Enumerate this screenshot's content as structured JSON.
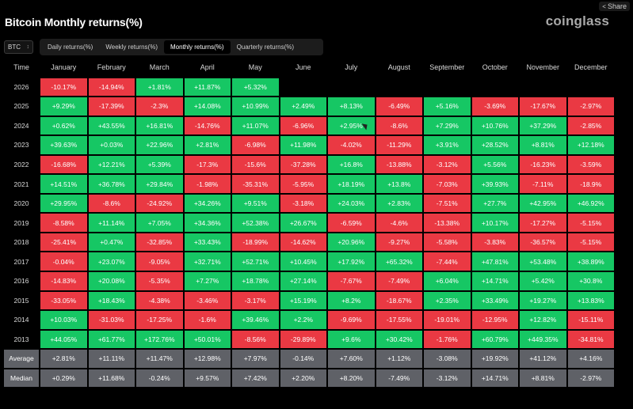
{
  "header": {
    "title": "Bitcoin Monthly returns(%)",
    "logo": "coinglass",
    "share_label": "Share",
    "coin_select": "BTC"
  },
  "tabs": [
    {
      "label": "Daily returns(%)",
      "active": false
    },
    {
      "label": "Weekly returns(%)",
      "active": false
    },
    {
      "label": "Monthly returns(%)",
      "active": true
    },
    {
      "label": "Quarterly returns(%)",
      "active": false
    }
  ],
  "colors": {
    "positive": "#16c764",
    "negative": "#ea3943",
    "summary": "#5f6167"
  },
  "chart_data": {
    "type": "heatmap",
    "title": "Bitcoin Monthly returns(%)",
    "corner_label": "Time",
    "columns": [
      "January",
      "February",
      "March",
      "April",
      "May",
      "June",
      "July",
      "August",
      "September",
      "October",
      "November",
      "December"
    ],
    "rows": [
      {
        "year": "2026",
        "values": [
          "-10.17%",
          "-14.94%",
          "+1.81%",
          "+11.87%",
          "+5.32%",
          "",
          "",
          "",
          "",
          "",
          "",
          ""
        ]
      },
      {
        "year": "2025",
        "values": [
          "+9.29%",
          "-17.39%",
          "-2.3%",
          "+14.08%",
          "+10.99%",
          "+2.49%",
          "+8.13%",
          "-6.49%",
          "+5.16%",
          "-3.69%",
          "-17.67%",
          "-2.97%"
        ]
      },
      {
        "year": "2024",
        "values": [
          "+0.62%",
          "+43.55%",
          "+16.81%",
          "-14.76%",
          "+11.07%",
          "-6.96%",
          "+2.95%",
          "-8.6%",
          "+7.29%",
          "+10.76%",
          "+37.29%",
          "-2.85%"
        ]
      },
      {
        "year": "2023",
        "values": [
          "+39.63%",
          "+0.03%",
          "+22.96%",
          "+2.81%",
          "-6.98%",
          "+11.98%",
          "-4.02%",
          "-11.29%",
          "+3.91%",
          "+28.52%",
          "+8.81%",
          "+12.18%"
        ]
      },
      {
        "year": "2022",
        "values": [
          "-16.68%",
          "+12.21%",
          "+5.39%",
          "-17.3%",
          "-15.6%",
          "-37.28%",
          "+16.8%",
          "-13.88%",
          "-3.12%",
          "+5.56%",
          "-16.23%",
          "-3.59%"
        ]
      },
      {
        "year": "2021",
        "values": [
          "+14.51%",
          "+36.78%",
          "+29.84%",
          "-1.98%",
          "-35.31%",
          "-5.95%",
          "+18.19%",
          "+13.8%",
          "-7.03%",
          "+39.93%",
          "-7.11%",
          "-18.9%"
        ]
      },
      {
        "year": "2020",
        "values": [
          "+29.95%",
          "-8.6%",
          "-24.92%",
          "+34.26%",
          "+9.51%",
          "-3.18%",
          "+24.03%",
          "+2.83%",
          "-7.51%",
          "+27.7%",
          "+42.95%",
          "+46.92%"
        ]
      },
      {
        "year": "2019",
        "values": [
          "-8.58%",
          "+11.14%",
          "+7.05%",
          "+34.36%",
          "+52.38%",
          "+26.67%",
          "-6.59%",
          "-4.6%",
          "-13.38%",
          "+10.17%",
          "-17.27%",
          "-5.15%"
        ]
      },
      {
        "year": "2018",
        "values": [
          "-25.41%",
          "+0.47%",
          "-32.85%",
          "+33.43%",
          "-18.99%",
          "-14.62%",
          "+20.96%",
          "-9.27%",
          "-5.58%",
          "-3.83%",
          "-36.57%",
          "-5.15%"
        ]
      },
      {
        "year": "2017",
        "values": [
          "-0.04%",
          "+23.07%",
          "-9.05%",
          "+32.71%",
          "+52.71%",
          "+10.45%",
          "+17.92%",
          "+65.32%",
          "-7.44%",
          "+47.81%",
          "+53.48%",
          "+38.89%"
        ]
      },
      {
        "year": "2016",
        "values": [
          "-14.83%",
          "+20.08%",
          "-5.35%",
          "+7.27%",
          "+18.78%",
          "+27.14%",
          "-7.67%",
          "-7.49%",
          "+6.04%",
          "+14.71%",
          "+5.42%",
          "+30.8%"
        ]
      },
      {
        "year": "2015",
        "values": [
          "-33.05%",
          "+18.43%",
          "-4.38%",
          "-3.46%",
          "-3.17%",
          "+15.19%",
          "+8.2%",
          "-18.67%",
          "+2.35%",
          "+33.49%",
          "+19.27%",
          "+13.83%"
        ]
      },
      {
        "year": "2014",
        "values": [
          "+10.03%",
          "-31.03%",
          "-17.25%",
          "-1.6%",
          "+39.46%",
          "+2.2%",
          "-9.69%",
          "-17.55%",
          "-19.01%",
          "-12.95%",
          "+12.82%",
          "-15.11%"
        ]
      },
      {
        "year": "2013",
        "values": [
          "+44.05%",
          "+61.77%",
          "+172.76%",
          "+50.01%",
          "-8.56%",
          "-29.89%",
          "+9.6%",
          "+30.42%",
          "-1.76%",
          "+60.79%",
          "+449.35%",
          "-34.81%"
        ]
      }
    ],
    "summary": [
      {
        "label": "Average",
        "values": [
          "+2.81%",
          "+11.11%",
          "+11.47%",
          "+12.98%",
          "+7.97%",
          "-0.14%",
          "+7.60%",
          "+1.12%",
          "-3.08%",
          "+19.92%",
          "+41.12%",
          "+4.16%"
        ]
      },
      {
        "label": "Median",
        "values": [
          "+0.29%",
          "+11.68%",
          "-0.24%",
          "+9.57%",
          "+7.42%",
          "+2.20%",
          "+8.20%",
          "-7.49%",
          "-3.12%",
          "+14.71%",
          "+8.81%",
          "-2.97%"
        ]
      }
    ]
  }
}
